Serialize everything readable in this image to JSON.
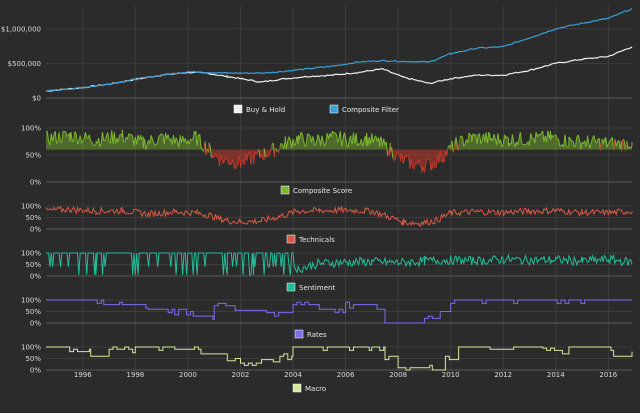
{
  "chart_data": {
    "type": "line",
    "x_axis": {
      "ticks": [
        "1996",
        "1998",
        "2000",
        "2002",
        "2004",
        "2006",
        "2008",
        "2010",
        "2012",
        "2014",
        "2016"
      ],
      "range": [
        1994.6,
        2016.9
      ],
      "grid": true
    },
    "panels": [
      {
        "id": "portfolio",
        "y_ticks": [
          "$0",
          "$500,000",
          "$1,000,000"
        ],
        "ylim": [
          0,
          1300000
        ],
        "series": [
          {
            "name": "Buy & Hold",
            "color": "#f0f0f0",
            "x": [
              1994.6,
              1996,
              1997,
              1998,
              1999,
              2000,
              2000.7,
              2001.5,
              2002.8,
              2003.5,
              2004.5,
              2005.5,
              2006.5,
              2007.4,
              2008.2,
              2009.2,
              2010,
              2011,
              2012,
              2013,
              2014,
              2015,
              2016,
              2016.9
            ],
            "y": [
              100000,
              150000,
              200000,
              270000,
              330000,
              370000,
              360000,
              310000,
              230000,
              270000,
              310000,
              330000,
              370000,
              420000,
              300000,
              210000,
              280000,
              330000,
              330000,
              400000,
              500000,
              560000,
              600000,
              740000
            ]
          },
          {
            "name": "Composite Filter",
            "color": "#3a9fd6",
            "x": [
              1994.6,
              1996,
              1997,
              1998,
              1999,
              2000,
              2000.7,
              2001.5,
              2002.8,
              2003.5,
              2004.5,
              2005.5,
              2006.5,
              2007.4,
              2008.2,
              2009.2,
              2010,
              2011,
              2012,
              2013,
              2014,
              2015,
              2016,
              2016.9
            ],
            "y": [
              100000,
              150000,
              200000,
              270000,
              330000,
              380000,
              370000,
              360000,
              360000,
              380000,
              420000,
              460000,
              520000,
              540000,
              530000,
              520000,
              640000,
              720000,
              740000,
              870000,
              1000000,
              1080000,
              1150000,
              1290000
            ]
          }
        ],
        "legend": [
          "Buy & Hold",
          "Composite Filter"
        ]
      },
      {
        "id": "composite",
        "y_ticks": [
          "0%",
          "50%",
          "100%"
        ],
        "ylim": [
          0,
          100
        ],
        "series": [
          {
            "name": "Composite Score",
            "color": "#7cb82f",
            "neg_color": "#c0392b",
            "threshold": 60,
            "x": [
              1994.6,
              1995.5,
              1996.5,
              1997.5,
              1998.3,
              1999,
              1999.7,
              2000.3,
              2000.8,
              2001.2,
              2001.6,
              2002,
              2002.5,
              2002.9,
              2003.3,
              2003.7,
              2004.2,
              2004.8,
              2005.5,
              2006.2,
              2006.8,
              2007.3,
              2007.7,
              2008.1,
              2008.5,
              2008.9,
              2009.3,
              2009.7,
              2010.2,
              2010.8,
              2011.5,
              2012.2,
              2013,
              2013.8,
              2014.5,
              2015.2,
              2015.9,
              2016.5,
              2016.9
            ],
            "y": [
              80,
              86,
              78,
              85,
              72,
              82,
              75,
              82,
              60,
              42,
              40,
              35,
              45,
              52,
              60,
              72,
              80,
              76,
              82,
              78,
              80,
              72,
              60,
              42,
              35,
              30,
              34,
              48,
              70,
              82,
              80,
              78,
              80,
              82,
              76,
              74,
              72,
              70,
              74
            ]
          }
        ],
        "legend": [
          "Composite Score"
        ]
      },
      {
        "id": "technicals",
        "y_ticks": [
          "0%",
          "50%",
          "100%"
        ],
        "ylim": [
          0,
          100
        ],
        "series": [
          {
            "name": "Technicals",
            "color": "#d95a45",
            "x": [
              1994.6,
              1995.5,
              1996.5,
              1997.5,
              1998.5,
              1999.5,
              2000.3,
              2000.8,
              2001.3,
              2002,
              2002.8,
              2003.5,
              2004.2,
              2005,
              2006,
              2007,
              2007.6,
              2008.2,
              2008.8,
              2009.4,
              2010,
              2011,
              2012,
              2013,
              2014,
              2015,
              2016,
              2016.9
            ],
            "y": [
              80,
              85,
              78,
              80,
              65,
              75,
              70,
              60,
              40,
              30,
              35,
              55,
              78,
              80,
              82,
              78,
              55,
              30,
              25,
              35,
              70,
              75,
              72,
              78,
              80,
              72,
              70,
              78
            ]
          }
        ],
        "legend": [
          "Technicals"
        ]
      },
      {
        "id": "sentiment",
        "y_ticks": [
          "0%",
          "50%",
          "100%"
        ],
        "ylim": [
          0,
          100
        ],
        "series": [
          {
            "name": "Sentiment",
            "color": "#1fbf9a",
            "x": [
              1994.6,
              1995.5,
              1996.5,
              1997.5,
              1998.5,
              1999.5,
              2000.5,
              2001.5,
              2002.5,
              2003.5,
              2004.2,
              2005,
              2006,
              2007,
              2008,
              2009,
              2010,
              2011,
              2012,
              2013,
              2014,
              2015,
              2016,
              2016.9
            ],
            "y": [
              100,
              100,
              100,
              100,
              100,
              100,
              100,
              100,
              100,
              100,
              30,
              55,
              60,
              62,
              58,
              65,
              70,
              65,
              72,
              68,
              70,
              65,
              72,
              60
            ]
          }
        ],
        "legend": [
          "Sentiment"
        ]
      },
      {
        "id": "rates",
        "y_ticks": [
          "0%",
          "50%",
          "100%"
        ],
        "ylim": [
          0,
          100
        ],
        "series": [
          {
            "name": "Rates",
            "color": "#7b6cf0",
            "x": [
              1994.6,
              1995.5,
              1996.8,
              1997.5,
              1998.5,
              1999.5,
              2000.2,
              2001,
              2001.8,
              2003,
              2004,
              2005,
              2006,
              2007.2,
              2007.5,
              2008.5,
              2009,
              2009.6,
              2010,
              2016.9
            ],
            "y": [
              100,
              100,
              80,
              80,
              60,
              50,
              30,
              75,
              55,
              45,
              80,
              60,
              80,
              60,
              0,
              0,
              20,
              50,
              100,
              100
            ]
          }
        ],
        "legend": [
          "Rates"
        ]
      },
      {
        "id": "macro",
        "y_ticks": [
          "0%",
          "50%",
          "100%"
        ],
        "ylim": [
          0,
          100
        ],
        "series": [
          {
            "name": "Macro",
            "color": "#d7e89a",
            "x": [
              1994.6,
              1995.5,
              1996.3,
              1997,
              1998,
              1999.5,
              2000.5,
              2001.5,
              2002,
              2002.8,
              2003.5,
              2004,
              2005,
              2006,
              2007,
              2007.5,
              2008,
              2009.3,
              2009.8,
              2010.3,
              2011.5,
              2012.5,
              2013.5,
              2014.5,
              2015.5,
              2016.2,
              2016.9
            ],
            "y": [
              100,
              80,
              60,
              90,
              100,
              90,
              70,
              40,
              20,
              35,
              60,
              100,
              100,
              100,
              100,
              60,
              10,
              0,
              60,
              100,
              90,
              100,
              85,
              100,
              100,
              60,
              80
            ]
          }
        ],
        "legend": [
          "Macro"
        ]
      }
    ]
  }
}
